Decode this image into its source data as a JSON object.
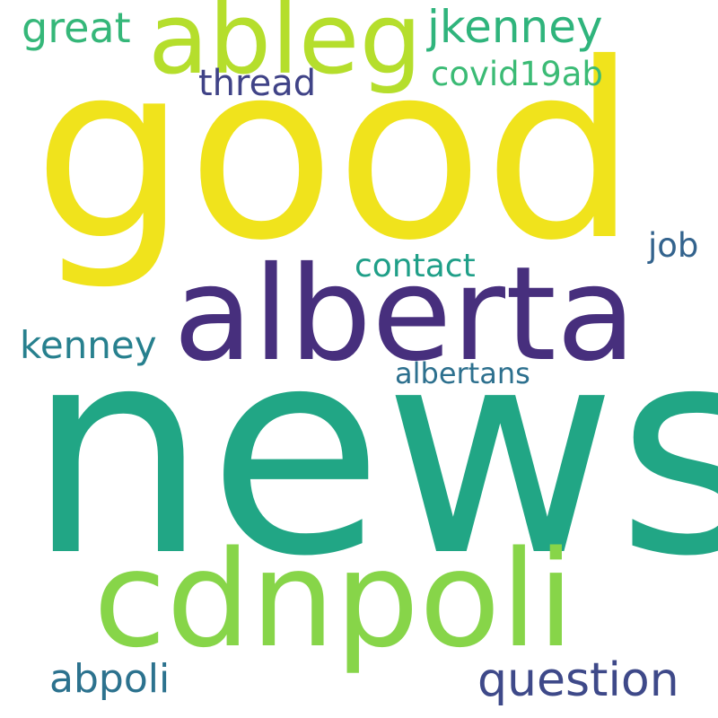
{
  "words": [
    {
      "text": "good",
      "color": "#f0e31c"
    },
    {
      "text": "news",
      "color": "#21a685"
    },
    {
      "text": "alberta",
      "color": "#472f7d"
    },
    {
      "text": "cdnpoli",
      "color": "#87d549"
    },
    {
      "text": "ableg",
      "color": "#b5de2c"
    },
    {
      "text": "jkenney",
      "color": "#2fb47c"
    },
    {
      "text": "great",
      "color": "#35b779"
    },
    {
      "text": "thread",
      "color": "#404387"
    },
    {
      "text": "covid19ab",
      "color": "#3bbb75"
    },
    {
      "text": "job",
      "color": "#33638d"
    },
    {
      "text": "contact",
      "color": "#1f9f88"
    },
    {
      "text": "kenney",
      "color": "#27808e"
    },
    {
      "text": "albertans",
      "color": "#2d708e"
    },
    {
      "text": "abpoli",
      "color": "#2c728e"
    },
    {
      "text": "question",
      "color": "#3e4989"
    }
  ]
}
